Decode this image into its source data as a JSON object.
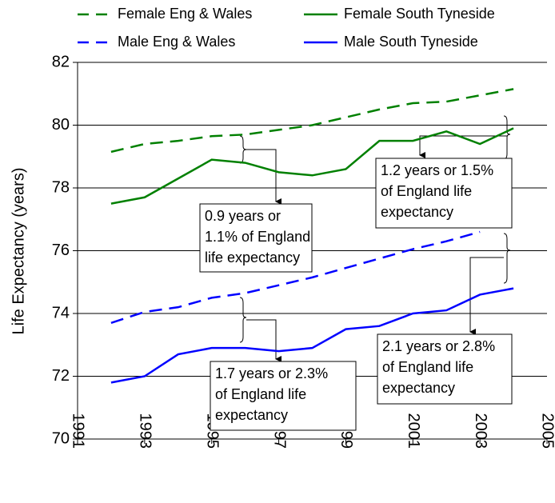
{
  "chart_data": {
    "type": "line",
    "ylabel": "Life Expectancy (years)",
    "x": [
      1992,
      1993,
      1994,
      1995,
      1996,
      1997,
      1998,
      1999,
      2000,
      2001,
      2002,
      2003,
      2004
    ],
    "series": [
      {
        "name": "Female Eng & Wales",
        "color": "#008000",
        "dashed": true,
        "values": [
          79.15,
          79.4,
          79.5,
          79.65,
          79.7,
          79.85,
          80.0,
          80.25,
          80.5,
          80.7,
          80.75,
          80.95,
          81.15
        ]
      },
      {
        "name": "Female South Tyneside",
        "color": "#008000",
        "dashed": false,
        "values": [
          77.5,
          77.7,
          78.3,
          78.9,
          78.8,
          78.5,
          78.4,
          78.6,
          79.5,
          79.5,
          79.8,
          79.4,
          79.9
        ]
      },
      {
        "name": "Male Eng & Wales",
        "color": "#0000ff",
        "dashed": true,
        "values": [
          73.7,
          74.05,
          74.2,
          74.5,
          74.65,
          74.9,
          75.15,
          75.45,
          75.75,
          76.05,
          76.3,
          76.6,
          null
        ]
      },
      {
        "name": "Male South Tyneside",
        "color": "#0000ff",
        "dashed": false,
        "values": [
          71.8,
          72.0,
          72.7,
          72.9,
          72.9,
          72.8,
          72.9,
          73.5,
          73.6,
          74.0,
          74.1,
          74.6,
          74.8
        ]
      }
    ],
    "xlim": [
      1991,
      2005
    ],
    "xticks": [
      1991,
      1993,
      1995,
      1997,
      1999,
      2001,
      2003,
      2005
    ],
    "ylim": [
      70,
      82
    ],
    "yticks": [
      70,
      72,
      74,
      76,
      78,
      80,
      82
    ],
    "grid": true,
    "annotations": [
      {
        "lines": [
          "0.9 years or",
          "1.1% of England",
          "life expectancy"
        ]
      },
      {
        "lines": [
          "1.2 years or 1.5%",
          "of England life",
          "expectancy"
        ]
      },
      {
        "lines": [
          "1.7 years or 2.3%",
          "of England life",
          "expectancy"
        ]
      },
      {
        "lines": [
          "2.1 years or 2.8%",
          "of England life",
          "expectancy"
        ]
      }
    ]
  }
}
